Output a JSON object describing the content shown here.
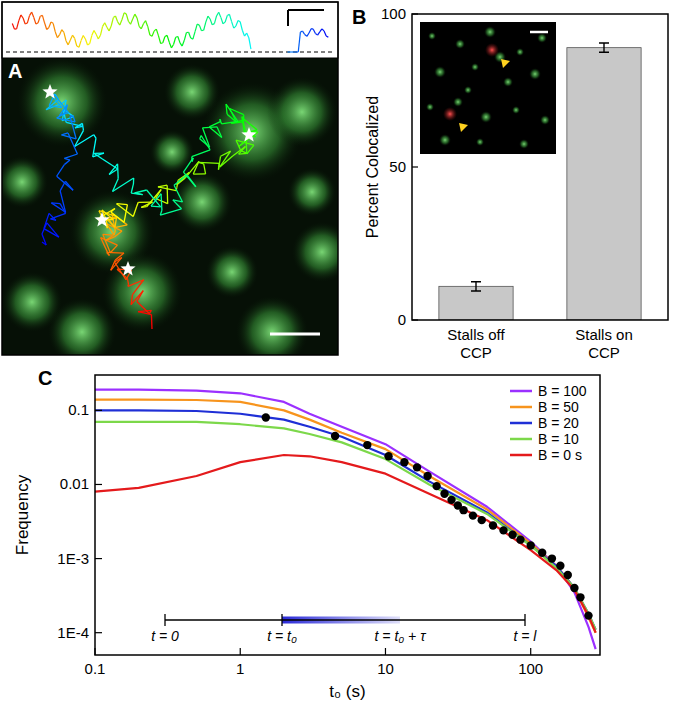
{
  "panel_labels": [
    "A",
    "B",
    "C"
  ],
  "chart_data": [
    {
      "type": "bar",
      "y_label": "Percent Colocalized",
      "categories": [
        "Stalls off CCP",
        "Stalls on CCP"
      ],
      "values": [
        11,
        89
      ],
      "errors": [
        1.5,
        1.5
      ],
      "color": "#c8c8c8",
      "ylim": [
        0,
        100
      ],
      "yticks": [
        0,
        50,
        100
      ],
      "grid": false
    },
    {
      "type": "line",
      "x_label": "t₀ (s)",
      "y_label": "Frequency",
      "log": true,
      "grid": false,
      "legend": "upper right",
      "xlim": [
        0.1,
        300
      ],
      "ylim": [
        5e-05,
        0.3
      ],
      "xticks": [
        0.1,
        1,
        10,
        100
      ],
      "yticks": [
        0.1,
        0.01,
        {
          "value": 0.001,
          "label": "1E-3"
        },
        {
          "value": 0.0001,
          "label": "1E-4"
        }
      ],
      "annotations": [
        "t = 0",
        "t = t₀",
        "t = t₀ + τ",
        "t = l"
      ],
      "series": [
        {
          "name": "B = 100",
          "color": "#9b30ff",
          "line_style": "solid",
          "x": [
            0.1,
            0.2,
            0.5,
            1,
            2,
            3,
            5,
            10,
            20,
            50,
            100,
            150,
            200,
            250,
            280
          ],
          "values": [
            0.19,
            0.19,
            0.185,
            0.17,
            0.13,
            0.09,
            0.06,
            0.035,
            0.015,
            0.005,
            0.0017,
            0.0008,
            0.00035,
            0.00012,
            6e-05
          ]
        },
        {
          "name": "B = 50",
          "color": "#f7941d",
          "line_style": "solid",
          "x": [
            0.1,
            0.2,
            0.5,
            1,
            2,
            3,
            5,
            10,
            20,
            50,
            100,
            150,
            200,
            250,
            280
          ],
          "values": [
            0.14,
            0.14,
            0.138,
            0.13,
            0.1,
            0.075,
            0.05,
            0.03,
            0.013,
            0.0046,
            0.0016,
            0.0008,
            0.0004,
            0.00016,
            0.0001
          ]
        },
        {
          "name": "B = 20",
          "color": "#1f2fd6",
          "line_style": "solid",
          "x": [
            0.1,
            0.2,
            0.5,
            1,
            2,
            3,
            5,
            10,
            20,
            50,
            100,
            150,
            200,
            250,
            280
          ],
          "values": [
            0.1,
            0.1,
            0.098,
            0.09,
            0.075,
            0.06,
            0.044,
            0.025,
            0.011,
            0.0042,
            0.0015,
            0.0008,
            0.0004,
            0.00018,
            0.00011
          ]
        },
        {
          "name": "B = 10",
          "color": "#7cd84a",
          "line_style": "solid",
          "x": [
            0.1,
            0.2,
            0.5,
            1,
            2,
            3,
            5,
            10,
            20,
            50,
            100,
            150,
            200,
            250,
            280
          ],
          "values": [
            0.07,
            0.07,
            0.07,
            0.065,
            0.057,
            0.048,
            0.037,
            0.022,
            0.01,
            0.004,
            0.0015,
            0.00075,
            0.0004,
            0.00018,
            0.00011
          ]
        },
        {
          "name": "B = 0 s",
          "color": "#e41a1c",
          "line_style": "solid",
          "x": [
            0.1,
            0.2,
            0.5,
            1,
            2,
            3,
            5,
            10,
            20,
            50,
            100,
            150,
            200,
            250,
            280
          ],
          "values": [
            0.008,
            0.009,
            0.013,
            0.02,
            0.025,
            0.024,
            0.02,
            0.014,
            0.0075,
            0.0033,
            0.0013,
            0.0007,
            0.00038,
            0.00017,
            0.0001
          ]
        },
        {
          "type": "scatter",
          "color": "#000000",
          "marker": "circle",
          "x": [
            1.5,
            4.5,
            7.5,
            10.5,
            13.5,
            16.5,
            19.5,
            22.5,
            25.5,
            28.5,
            31.5,
            34.5,
            40,
            46,
            55,
            65,
            75,
            85,
            100,
            120,
            140,
            160,
            180,
            200,
            220,
            250
          ],
          "values": [
            0.08,
            0.045,
            0.034,
            0.024,
            0.02,
            0.017,
            0.013,
            0.0095,
            0.0075,
            0.0062,
            0.0052,
            0.0045,
            0.0038,
            0.0033,
            0.0028,
            0.0024,
            0.0021,
            0.0018,
            0.0015,
            0.0012,
            0.001,
            0.0008,
            0.0006,
            0.0004,
            0.0003,
            0.00017
          ]
        }
      ]
    }
  ]
}
